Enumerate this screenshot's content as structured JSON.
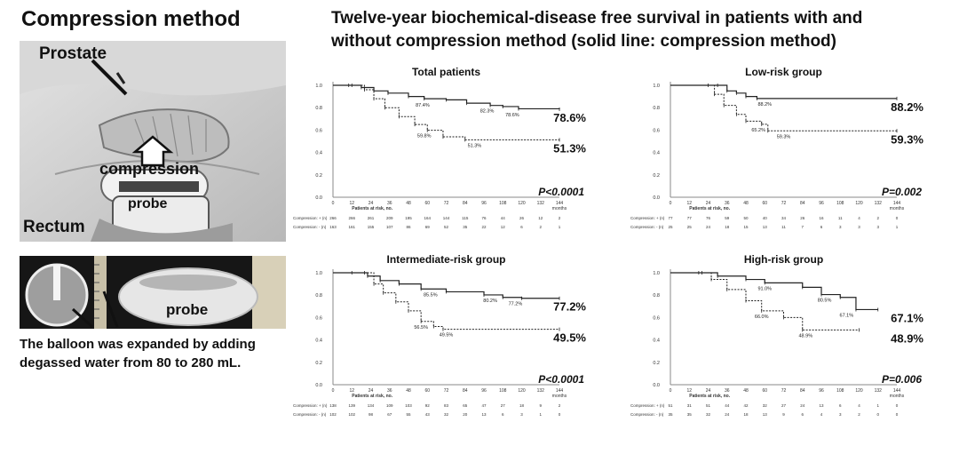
{
  "left": {
    "title": "Compression method",
    "labels": {
      "prostate": "Prostate",
      "compression": "compression",
      "probe": "probe",
      "rectum": "Rectum",
      "probe2": "probe"
    },
    "caption_line1": "The balloon was expanded by adding",
    "caption_line2": "degassed water from 80 to 280 mL."
  },
  "header": {
    "title_line1": "Twelve-year biochemical-disease free survival in patients with and",
    "title_line2": "without compression method  (solid line: compression method)"
  },
  "chart_data": [
    {
      "type": "line",
      "title": "Total patients",
      "x_ticks": [
        0,
        12,
        24,
        36,
        48,
        60,
        72,
        84,
        96,
        108,
        120,
        132,
        144
      ],
      "x_unit": "months",
      "y_ticks": [
        "1.0",
        "0.8",
        "0.6",
        "0.4",
        "0.2",
        "0.0"
      ],
      "ylim": [
        0,
        1
      ],
      "at_risk_label": "Patients at risk, no.",
      "series": [
        {
          "name": "Compression: + (n)",
          "style": "solid",
          "points": [
            [
              0,
              1.0
            ],
            [
              10,
              1.0
            ],
            [
              18,
              0.98
            ],
            [
              26,
              0.95
            ],
            [
              35,
              0.93
            ],
            [
              48,
              0.9
            ],
            [
              58,
              0.88
            ],
            [
              72,
              0.87
            ],
            [
              85,
              0.84
            ],
            [
              100,
              0.82
            ],
            [
              108,
              0.81
            ],
            [
              118,
              0.79
            ],
            [
              144,
              0.786
            ]
          ],
          "end_label": "78.6%",
          "annotations": [
            {
              "x": 57,
              "y": 0.874,
              "text": "87.4%"
            },
            {
              "x": 98,
              "y": 0.823,
              "text": "82.3%"
            },
            {
              "x": 114,
              "y": 0.786,
              "text": "78.6%"
            }
          ],
          "at_risk": [
            "266",
            "266",
            "261",
            "209",
            "195",
            "164",
            "144",
            "115",
            "76",
            "44",
            "26",
            "12",
            "2"
          ]
        },
        {
          "name": "Compression: - (n)",
          "style": "dashed",
          "points": [
            [
              0,
              1.0
            ],
            [
              12,
              1.0
            ],
            [
              20,
              0.96
            ],
            [
              26,
              0.88
            ],
            [
              33,
              0.8
            ],
            [
              42,
              0.72
            ],
            [
              52,
              0.65
            ],
            [
              60,
              0.598
            ],
            [
              70,
              0.54
            ],
            [
              84,
              0.513
            ],
            [
              144,
              0.513
            ]
          ],
          "end_label": "51.3%",
          "annotations": [
            {
              "x": 58,
              "y": 0.598,
              "text": "59.8%"
            },
            {
              "x": 90,
              "y": 0.513,
              "text": "51.3%"
            }
          ],
          "at_risk": [
            "163",
            "161",
            "155",
            "107",
            "86",
            "69",
            "52",
            "35",
            "22",
            "12",
            "6",
            "2",
            "1"
          ]
        }
      ],
      "p_value": "P<0.0001"
    },
    {
      "type": "line",
      "title": "Low-risk group",
      "x_ticks": [
        0,
        12,
        24,
        36,
        48,
        60,
        72,
        84,
        96,
        108,
        120,
        132,
        144
      ],
      "x_unit": "months",
      "y_ticks": [
        "1.0",
        "0.8",
        "0.6",
        "0.4",
        "0.2",
        "0.0"
      ],
      "ylim": [
        0,
        1
      ],
      "at_risk_label": "Patients at risk, no.",
      "series": [
        {
          "name": "Compression: + (n)",
          "style": "solid",
          "points": [
            [
              0,
              1.0
            ],
            [
              30,
              1.0
            ],
            [
              36,
              0.95
            ],
            [
              42,
              0.93
            ],
            [
              48,
              0.9
            ],
            [
              55,
              0.882
            ],
            [
              144,
              0.882
            ]
          ],
          "end_label": "88.2%",
          "annotations": [
            {
              "x": 60,
              "y": 0.882,
              "text": "88.2%"
            }
          ],
          "at_risk": [
            "77",
            "77",
            "76",
            "59",
            "50",
            "40",
            "34",
            "26",
            "16",
            "11",
            "4",
            "2",
            "0"
          ]
        },
        {
          "name": "Compression: - (n)",
          "style": "dashed",
          "points": [
            [
              0,
              1.0
            ],
            [
              24,
              1.0
            ],
            [
              28,
              0.92
            ],
            [
              34,
              0.82
            ],
            [
              42,
              0.74
            ],
            [
              48,
              0.68
            ],
            [
              58,
              0.652
            ],
            [
              62,
              0.593
            ],
            [
              144,
              0.593
            ]
          ],
          "end_label": "59.3%",
          "annotations": [
            {
              "x": 56,
              "y": 0.652,
              "text": "65.2%"
            },
            {
              "x": 72,
              "y": 0.593,
              "text": "59.3%"
            }
          ],
          "at_risk": [
            "25",
            "25",
            "24",
            "18",
            "15",
            "13",
            "11",
            "7",
            "6",
            "3",
            "3",
            "3",
            "1"
          ]
        }
      ],
      "p_value": "P=0.002"
    },
    {
      "type": "line",
      "title": "Intermediate-risk group",
      "x_ticks": [
        0,
        12,
        24,
        36,
        48,
        60,
        72,
        84,
        96,
        108,
        120,
        132,
        144
      ],
      "x_unit": "months",
      "y_ticks": [
        "1.0",
        "0.8",
        "0.6",
        "0.4",
        "0.2",
        "0.0"
      ],
      "ylim": [
        0,
        1
      ],
      "at_risk_label": "Patients at risk, no.",
      "series": [
        {
          "name": "Compression: + (n)",
          "style": "solid",
          "points": [
            [
              0,
              1.0
            ],
            [
              12,
              1.0
            ],
            [
              22,
              0.97
            ],
            [
              30,
              0.93
            ],
            [
              42,
              0.9
            ],
            [
              56,
              0.855
            ],
            [
              72,
              0.83
            ],
            [
              96,
              0.802
            ],
            [
              108,
              0.78
            ],
            [
              120,
              0.772
            ],
            [
              144,
              0.772
            ]
          ],
          "end_label": "77.2%",
          "annotations": [
            {
              "x": 62,
              "y": 0.855,
              "text": "85.5%"
            },
            {
              "x": 100,
              "y": 0.802,
              "text": "80.2%"
            },
            {
              "x": 116,
              "y": 0.772,
              "text": "77.2%"
            }
          ],
          "at_risk": [
            "138",
            "139",
            "134",
            "109",
            "103",
            "92",
            "83",
            "65",
            "47",
            "27",
            "18",
            "9",
            "2"
          ]
        },
        {
          "name": "Compression: - (n)",
          "style": "dashed",
          "points": [
            [
              0,
              1.0
            ],
            [
              20,
              1.0
            ],
            [
              26,
              0.9
            ],
            [
              32,
              0.82
            ],
            [
              40,
              0.74
            ],
            [
              48,
              0.66
            ],
            [
              56,
              0.565
            ],
            [
              64,
              0.52
            ],
            [
              70,
              0.495
            ],
            [
              144,
              0.495
            ]
          ],
          "end_label": "49.5%",
          "annotations": [
            {
              "x": 56,
              "y": 0.565,
              "text": "56.5%"
            },
            {
              "x": 72,
              "y": 0.495,
              "text": "49.5%"
            }
          ],
          "at_risk": [
            "102",
            "102",
            "98",
            "67",
            "55",
            "43",
            "32",
            "20",
            "13",
            "6",
            "3",
            "1",
            "0"
          ]
        }
      ],
      "p_value": "P<0.0001"
    },
    {
      "type": "line",
      "title": "High-risk group",
      "x_ticks": [
        0,
        12,
        24,
        36,
        48,
        60,
        72,
        84,
        96,
        108,
        120,
        132,
        144
      ],
      "x_unit": "months",
      "y_ticks": [
        "1.0",
        "0.8",
        "0.6",
        "0.4",
        "0.2",
        "0.0"
      ],
      "ylim": [
        0,
        1
      ],
      "at_risk_label": "Patients at risk, no.",
      "series": [
        {
          "name": "Compression: + (n)",
          "style": "solid",
          "points": [
            [
              0,
              1.0
            ],
            [
              20,
              1.0
            ],
            [
              30,
              0.97
            ],
            [
              48,
              0.94
            ],
            [
              60,
              0.91
            ],
            [
              84,
              0.87
            ],
            [
              96,
              0.805
            ],
            [
              108,
              0.78
            ],
            [
              118,
              0.671
            ],
            [
              132,
              0.671
            ]
          ],
          "end_label": "67.1%",
          "annotations": [
            {
              "x": 60,
              "y": 0.91,
              "text": "91.0%"
            },
            {
              "x": 98,
              "y": 0.805,
              "text": "80.5%"
            },
            {
              "x": 112,
              "y": 0.671,
              "text": "67.1%"
            }
          ],
          "at_risk": [
            "51",
            "31",
            "51",
            "44",
            "42",
            "32",
            "27",
            "24",
            "13",
            "6",
            "4",
            "1",
            "0"
          ]
        },
        {
          "name": "Compression: - (n)",
          "style": "dashed",
          "points": [
            [
              0,
              1.0
            ],
            [
              18,
              1.0
            ],
            [
              26,
              0.94
            ],
            [
              36,
              0.85
            ],
            [
              48,
              0.75
            ],
            [
              58,
              0.66
            ],
            [
              72,
              0.6
            ],
            [
              84,
              0.489
            ],
            [
              120,
              0.489
            ]
          ],
          "end_label": "48.9%",
          "annotations": [
            {
              "x": 58,
              "y": 0.66,
              "text": "66.0%"
            },
            {
              "x": 86,
              "y": 0.489,
              "text": "48.9%"
            }
          ],
          "at_risk": [
            "35",
            "35",
            "32",
            "24",
            "18",
            "13",
            "9",
            "6",
            "4",
            "3",
            "2",
            "0",
            "0"
          ]
        }
      ],
      "p_value": "P=0.006"
    }
  ]
}
